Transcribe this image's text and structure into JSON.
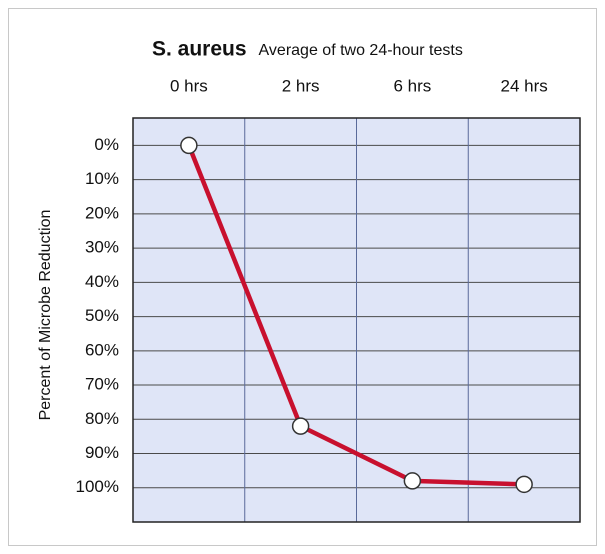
{
  "chart_data": {
    "type": "line",
    "title": "S. aureus",
    "subtitle": "Average of two 24-hour tests",
    "y_label": "Percent of Microbe Reduction",
    "categories": [
      "0 hrs",
      "2 hrs",
      "6 hrs",
      "24 hrs"
    ],
    "series": [
      {
        "name": "S. aureus",
        "color": "#c8102e",
        "values": [
          0,
          82,
          98,
          99
        ]
      }
    ],
    "ylim": [
      -8,
      110
    ],
    "y_inverted": true,
    "yticks": [
      {
        "value": 0,
        "label": "0%"
      },
      {
        "value": 10,
        "label": "10%"
      },
      {
        "value": 20,
        "label": "20%"
      },
      {
        "value": 30,
        "label": "30%"
      },
      {
        "value": 40,
        "label": "40%"
      },
      {
        "value": 50,
        "label": "50%"
      },
      {
        "value": 60,
        "label": "60%"
      },
      {
        "value": 70,
        "label": "70%"
      },
      {
        "value": 80,
        "label": "80%"
      },
      {
        "value": 90,
        "label": "90%"
      },
      {
        "value": 100,
        "label": "100%"
      }
    ],
    "grid": true
  }
}
